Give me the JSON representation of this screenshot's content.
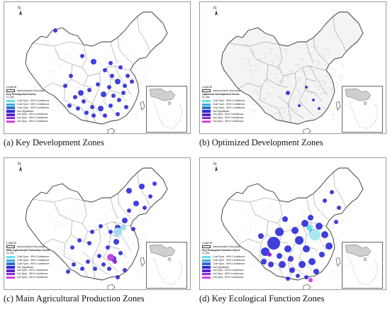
{
  "panels": [
    {
      "id": "a",
      "caption": "(a) Key Development Zones",
      "legend_zone": "Key Development Zones"
    },
    {
      "id": "b",
      "caption": "(b) Optimized Development Zones",
      "legend_zone": "Optimized Development Zones"
    },
    {
      "id": "c",
      "caption": "(c) Main Agricultural Production Zones",
      "legend_zone": "Main Agricultural Production Zones"
    },
    {
      "id": "d",
      "caption": "(d) Key Ecological Function Zones",
      "legend_zone": "Key Ecological Function Zones"
    }
  ],
  "legend": {
    "title": "Legend",
    "boundary_label": "Administrative Boundary",
    "class_header": "Gi_Bin",
    "classes": [
      {
        "label": "Cold Spot - 99% Confidence",
        "color": "#5fe0ee"
      },
      {
        "label": "Cold Spot - 95% Confidence",
        "color": "#39a9d6"
      },
      {
        "label": "Cold Spot - 90% Confidence",
        "color": "#2f6fd0"
      },
      {
        "label": "Not Significant",
        "color": "#2a2ad8"
      },
      {
        "label": "Hot Spot - 90% Confidence",
        "color": "#5a24c8"
      },
      {
        "label": "Hot Spot - 95% Confidence",
        "color": "#8e2cd0"
      },
      {
        "label": "Hot Spot - 99% Confidence",
        "color": "#d640dc"
      }
    ]
  },
  "north_label": "N",
  "colors": {
    "boundary": "#777777",
    "outline": "#333333",
    "hotspot": "#2a2ad8"
  }
}
